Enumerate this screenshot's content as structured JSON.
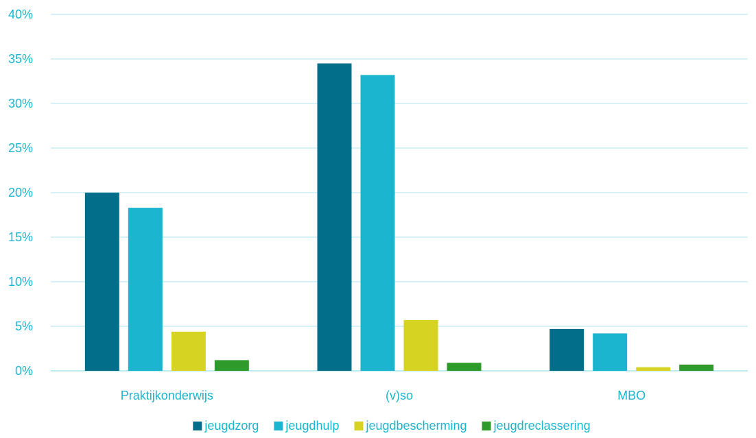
{
  "chart_data": {
    "type": "bar",
    "categories": [
      "Praktijkonderwijs",
      "(v)so",
      "MBO"
    ],
    "series": [
      {
        "name": "jeugdzorg",
        "color": "#036E8A",
        "values": [
          20.0,
          34.5,
          4.7
        ]
      },
      {
        "name": "jeugdhulp",
        "color": "#1CB5CF",
        "values": [
          18.3,
          33.2,
          4.2
        ]
      },
      {
        "name": "jeugdbescherming",
        "color": "#D6D323",
        "values": [
          4.4,
          5.7,
          0.4
        ]
      },
      {
        "name": "jeugdreclassering",
        "color": "#2E9A2B",
        "values": [
          1.2,
          0.9,
          0.7
        ]
      }
    ],
    "ylim": [
      0,
      40
    ],
    "yticks": [
      0,
      5,
      10,
      15,
      20,
      25,
      30,
      35,
      40
    ],
    "ytick_labels": [
      "0%",
      "5%",
      "10%",
      "15%",
      "20%",
      "25%",
      "30%",
      "35%",
      "40%"
    ],
    "grid": true,
    "legend_position": "bottom",
    "text_color": "#1CB5CF",
    "grid_color": "#C9EEF5"
  }
}
